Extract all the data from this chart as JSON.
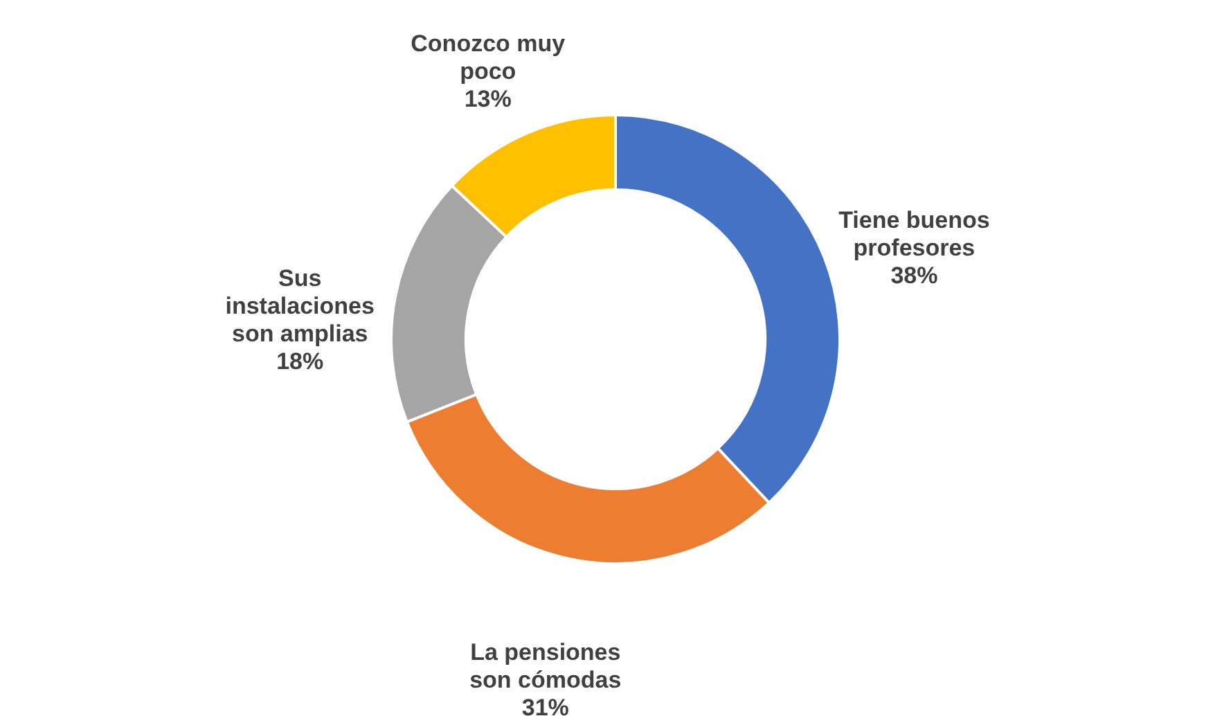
{
  "chart_data": {
    "type": "donut",
    "categories": [
      "Tiene buenos profesores",
      "La pensiones son cómodas",
      "Sus instalaciones son amplias",
      "Conozco muy poco"
    ],
    "values": [
      38,
      31,
      18,
      13
    ],
    "value_labels": [
      "38%",
      "31%",
      "18%",
      "13%"
    ],
    "colors": [
      "#4472c4",
      "#ed7d31",
      "#a5a5a5",
      "#ffc000"
    ]
  }
}
